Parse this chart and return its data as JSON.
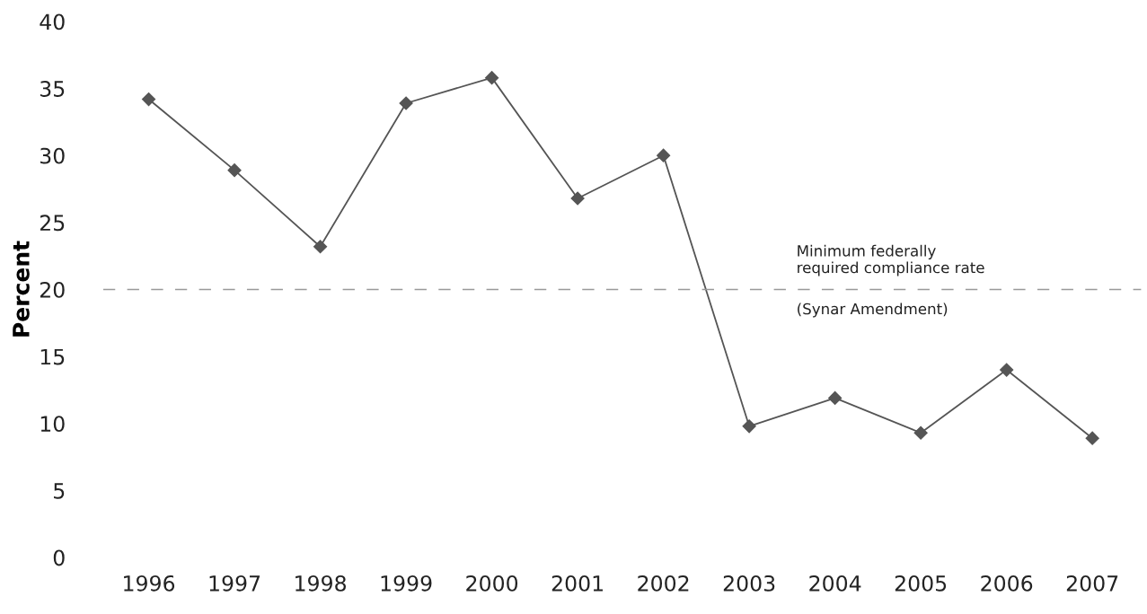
{
  "chart_data": {
    "type": "line",
    "ylabel": "Percent",
    "categories": [
      "1996",
      "1997",
      "1998",
      "1999",
      "2000",
      "2001",
      "2002",
      "2003",
      "2004",
      "2005",
      "2006",
      "2007"
    ],
    "series": [
      {
        "color": "#555555",
        "values": [
          34.2,
          28.9,
          23.2,
          33.9,
          35.8,
          26.8,
          30.0,
          9.8,
          11.9,
          9.3,
          14.0,
          8.9
        ]
      }
    ],
    "ylim": [
      0,
      40
    ],
    "yticks": [
      0,
      5,
      10,
      15,
      20,
      25,
      30,
      35,
      40
    ],
    "marker": "diamond",
    "line_style": "solid",
    "grid": false,
    "ref_lines": [
      {
        "axis": "y",
        "value": 20,
        "label": "Minimum federally\nrequired compliance rate",
        "color": "#999999",
        "line_style": "dashed"
      }
    ],
    "annotations": [
      "(Synar Amendment)"
    ]
  }
}
